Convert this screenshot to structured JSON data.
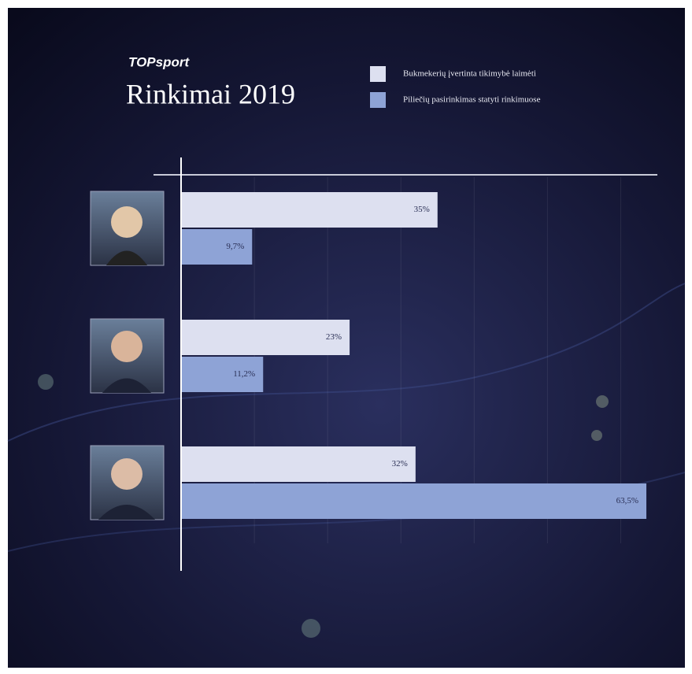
{
  "chart_data": {
    "type": "hbar",
    "brand": "TOPsport",
    "title": "Rinkimai 2019",
    "categories": [
      null,
      null,
      null
    ],
    "series": [
      {
        "name": "Bukmekerių įvertinta tikimybė laimėti",
        "color": "#dde0f0",
        "values": [
          35,
          23,
          32
        ],
        "value_labels": [
          "35%",
          "23%",
          "32%"
        ]
      },
      {
        "name": "Piliečių pasirinkimas statyti rinkimuose",
        "color": "#8ea3d6",
        "values": [
          9.7,
          11.2,
          63.5
        ],
        "value_labels": [
          "9,7%",
          "11,2%",
          "63,5%"
        ]
      }
    ],
    "xlim": [
      0,
      65
    ],
    "xticks": [
      10,
      20,
      30,
      40,
      50,
      60
    ],
    "grid": true
  }
}
